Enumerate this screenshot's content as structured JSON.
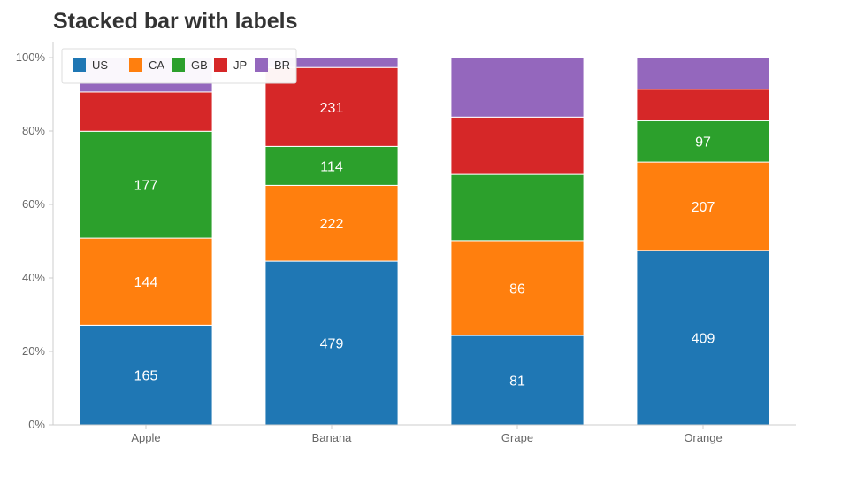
{
  "chart_data": {
    "type": "bar",
    "stacked": true,
    "normalized": true,
    "title": "Stacked bar with labels",
    "xlabel": "",
    "ylabel": "",
    "ylim": [
      0,
      100
    ],
    "yticks": [
      "0%",
      "20%",
      "40%",
      "60%",
      "80%",
      "100%"
    ],
    "categories": [
      "Apple",
      "Banana",
      "Grape",
      "Orange"
    ],
    "series": [
      {
        "name": "US",
        "color": "#1f77b4",
        "values": [
          165,
          479,
          81,
          409
        ]
      },
      {
        "name": "CA",
        "color": "#ff7f0e",
        "values": [
          144,
          222,
          86,
          207
        ]
      },
      {
        "name": "GB",
        "color": "#2ca02c",
        "values": [
          177,
          114,
          60,
          97
        ]
      },
      {
        "name": "JP",
        "color": "#d62728",
        "values": [
          65,
          231,
          52,
          74
        ]
      },
      {
        "name": "BR",
        "color": "#9467bd",
        "values": [
          57,
          29,
          54,
          74
        ]
      }
    ],
    "label_threshold": 80,
    "legend": "top-left",
    "grid": false
  }
}
